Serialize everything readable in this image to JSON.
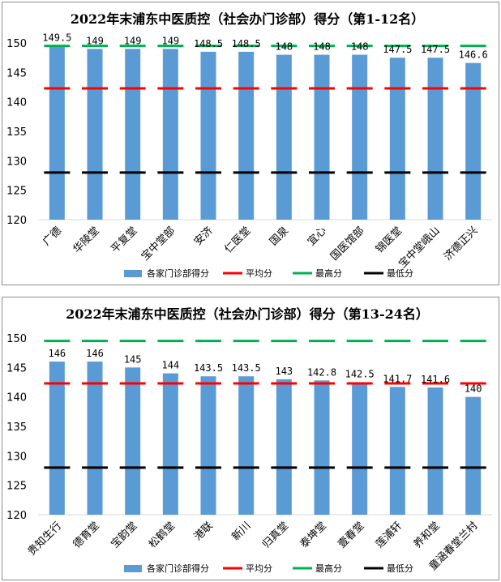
{
  "chart_data": [
    {
      "type": "bar",
      "title": "2022年末浦东中医质控（社会办门诊部）得分（第1-12名）",
      "categories": [
        "广德",
        "华陵堂",
        "平复堂",
        "宝中堂部",
        "安济",
        "仁医堂",
        "国泉",
        "宜心",
        "国医馆部",
        "锦医堂",
        "宝中堂峨山",
        "济德正兴"
      ],
      "series": [
        {
          "name": "各家门诊部得分",
          "type": "bar",
          "color": "#5b9bd5",
          "values": [
            149.5,
            149,
            149,
            149,
            148.5,
            148.5,
            148,
            148,
            148,
            147.5,
            147.5,
            146.6
          ]
        },
        {
          "name": "平均分",
          "type": "line",
          "color": "#ff0000",
          "value": 142.3
        },
        {
          "name": "最高分",
          "type": "line",
          "color": "#00b050",
          "value": 149.5
        },
        {
          "name": "最低分",
          "type": "line",
          "color": "#000000",
          "value": 128
        }
      ],
      "data_labels": [
        "149.5",
        "149",
        "149",
        "149",
        "148.5",
        "148.5",
        "148",
        "148",
        "148",
        "147.5",
        "147.5",
        "146.6"
      ],
      "ylim": [
        120,
        150
      ],
      "yticks": [
        "120",
        "125",
        "130",
        "135",
        "140",
        "145",
        "150"
      ],
      "grid": false,
      "legend": "bottom"
    },
    {
      "type": "bar",
      "title": "2022年末浦东中医质控（社会办门诊部）得分（第13-24名）",
      "categories": [
        "贵知生行",
        "德育堂",
        "宝韵堂",
        "松鹤堂",
        "港联",
        "新川",
        "归真堂",
        "泰坤堂",
        "壹春堂",
        "莲浦轩",
        "养和堂",
        "童涵春堂兰村"
      ],
      "series": [
        {
          "name": "各家门诊部得分",
          "type": "bar",
          "color": "#5b9bd5",
          "values": [
            146,
            146,
            145,
            144,
            143.5,
            143.5,
            143,
            142.8,
            142.5,
            141.7,
            141.6,
            140
          ]
        },
        {
          "name": "平均分",
          "type": "line",
          "color": "#ff0000",
          "value": 142.3
        },
        {
          "name": "最高分",
          "type": "line",
          "color": "#00b050",
          "value": 149.5
        },
        {
          "name": "最低分",
          "type": "line",
          "color": "#000000",
          "value": 128
        }
      ],
      "data_labels": [
        "146",
        "146",
        "145",
        "144",
        "143.5",
        "143.5",
        "143",
        "142.8",
        "142.5",
        "141.7",
        "141.6",
        "140"
      ],
      "ylim": [
        120,
        150
      ],
      "yticks": [
        "120",
        "125",
        "130",
        "135",
        "140",
        "145",
        "150"
      ],
      "grid": false,
      "legend": "bottom"
    }
  ]
}
